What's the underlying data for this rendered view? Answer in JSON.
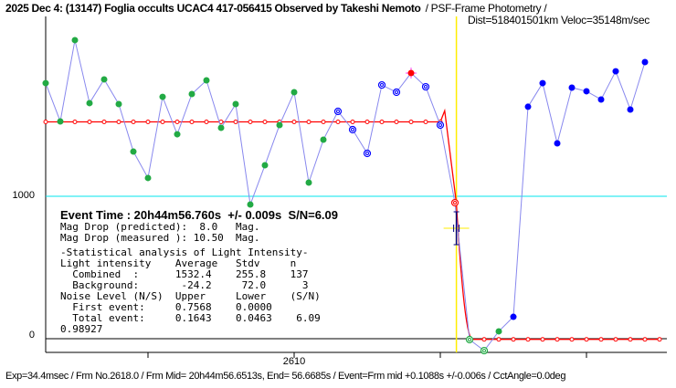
{
  "header": {
    "title": "2025 Dec 4: (13147) Foglia occults UCAC4 417-056415 Observed by Takeshi Nemoto",
    "method": "/ PSF-Frame Photometry /",
    "dist_veloc": "Dist=518401501km Veloc=35148m/sec"
  },
  "stats": {
    "event_time": "Event Time : 20h44m56.760s  +/- 0.009s  S/N=6.09",
    "lines": [
      "Mag Drop (predicted):  8.0   Mag.",
      "Mag Drop (measured ): 10.50  Mag.",
      "-Statistical analysis of Light Intensity-",
      "Light intensity    Average   Stdv     n",
      "  Combined  :      1532.4    255.8    137",
      "  Background:       -24.2     72.0      3",
      "Noise Level (N/S)  Upper     Lower    (S/N)",
      "  First event:     0.7568    0.0000",
      "  Total event:     0.1643    0.0463    6.09",
      "0.98927"
    ]
  },
  "footer": "Exp=34.4msec / Frm No.2618.0 / Frm Mid= 20h44m56.6513s,  End= 56.6685s / Event=Frm mid +0.1088s +/-0.006s / CctAngle=0.0deg",
  "chart_data": {
    "type": "line",
    "title": "2025 Dec 4: (13147) Foglia occults UCAC4 417-056415 Observed by Takeshi Nemoto",
    "x_tick_labels": [
      {
        "frame": 2610,
        "label": "2610"
      }
    ],
    "x_ticks": [
      2600,
      2610,
      2620,
      2630
    ],
    "xlim": [
      2593,
      2636
    ],
    "y_tick_labels": [
      {
        "value": 0,
        "label": "0"
      },
      {
        "value": 1000,
        "label": "1000"
      }
    ],
    "ylim": [
      -110,
      2270
    ],
    "reference_line_value": 1000,
    "event_frame": 2621.1,
    "model": {
      "upper_level": 1532.4,
      "lower_level": -24.2,
      "drop_frame": 2621.1,
      "recover_frame": 2622.2
    },
    "series": [
      {
        "x": [
          2593,
          2594,
          2595,
          2596,
          2597,
          2598,
          2599,
          2600,
          2601,
          2602,
          2603,
          2604,
          2605,
          2606,
          2607,
          2608,
          2609,
          2610,
          2611,
          2612,
          2613,
          2614,
          2615,
          2616,
          2617,
          2618,
          2619,
          2620,
          2621,
          2622,
          2623,
          2624,
          2625,
          2626,
          2627,
          2628,
          2629,
          2630,
          2631,
          2632,
          2633,
          2634
        ],
        "y": [
          1810,
          1536,
          2118,
          1667,
          1837,
          1660,
          1320,
          1131,
          1712,
          1444,
          1732,
          1830,
          1490,
          1660,
          941,
          1222,
          1510,
          1745,
          1098,
          1405,
          1608,
          1477,
          1307,
          1797,
          1745,
          1882,
          1784,
          1510,
          954,
          -26,
          -105,
          33,
          137,
          1641,
          1810,
          1379,
          1778,
          1752,
          1693,
          1895,
          1621,
          1961
        ],
        "markers": [
          "g",
          "g",
          "g",
          "g",
          "g",
          "g",
          "g",
          "g",
          "g",
          "g",
          "g",
          "g",
          "g",
          "g",
          "g",
          "g",
          "g",
          "g",
          "g",
          "g",
          "br",
          "br",
          "br",
          "br",
          "br",
          "rs",
          "br",
          "br",
          "rr",
          "gr",
          "gr",
          "g",
          "b",
          "b",
          "b",
          "b",
          "b",
          "b",
          "b",
          "b",
          "b",
          "b"
        ]
      }
    ],
    "colors": {
      "data_line": "#8888ee",
      "model": "#ff0000",
      "reference": "#00e5ee",
      "event": "#ffee00",
      "green": "#22aa44",
      "blue": "#0000ff",
      "error_bar": "#000080"
    },
    "grid": false
  }
}
